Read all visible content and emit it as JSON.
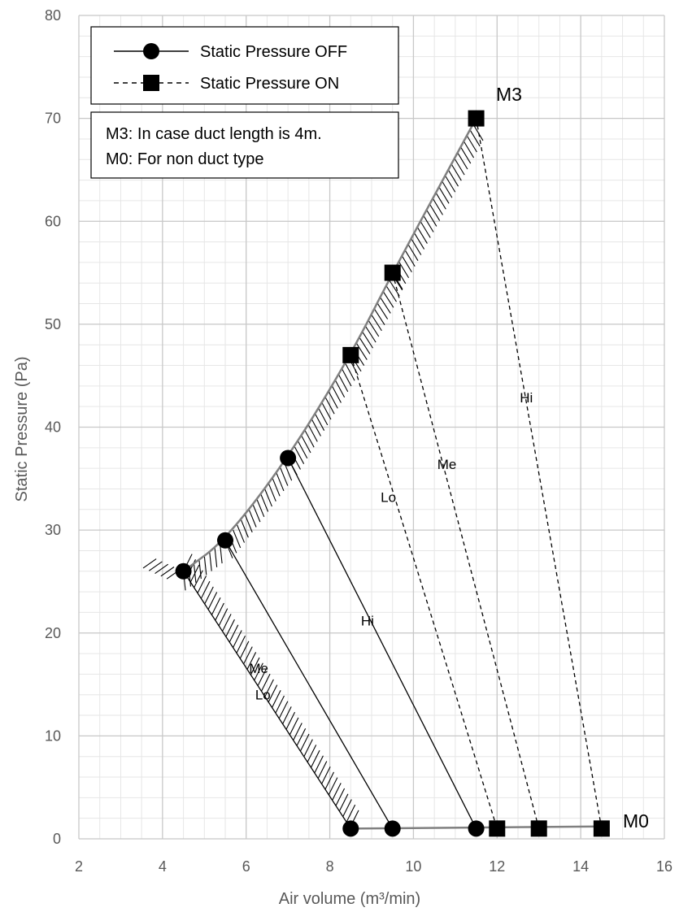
{
  "chart_data": {
    "type": "line",
    "xlabel": "Air volume (m³/min)",
    "ylabel": "Static Pressure (Pa)",
    "xlim": [
      2,
      16
    ],
    "ylim": [
      0,
      80
    ],
    "xticks": [
      "2",
      "4",
      "6",
      "8",
      "10",
      "12",
      "14",
      "16"
    ],
    "yticks": [
      "0",
      "10",
      "20",
      "30",
      "40",
      "50",
      "60",
      "70",
      "80"
    ],
    "grid": true,
    "legend": {
      "placement": "top-left",
      "entries": [
        {
          "label": "Static Pressure OFF",
          "style": "solid",
          "marker": "circle"
        },
        {
          "label": "Static Pressure ON",
          "style": "dashed",
          "marker": "square"
        }
      ]
    },
    "note": [
      "M3: In case duct length is 4m.",
      "M0: For non duct type"
    ],
    "end_labels": {
      "top": "M3",
      "bottom": "M0"
    },
    "series": [
      {
        "label": "Lo",
        "style": "solid",
        "marker": "circle",
        "points": [
          [
            4.5,
            26
          ],
          [
            8.5,
            1
          ]
        ]
      },
      {
        "label": "Me",
        "style": "solid",
        "marker": "circle",
        "points": [
          [
            5.5,
            29
          ],
          [
            9.5,
            1
          ]
        ]
      },
      {
        "label": "Hi",
        "style": "solid",
        "marker": "circle",
        "points": [
          [
            7,
            37
          ],
          [
            11.5,
            1
          ]
        ]
      },
      {
        "label": "Lo",
        "style": "dashed",
        "marker": "square",
        "points": [
          [
            8.5,
            47
          ],
          [
            12,
            1
          ]
        ]
      },
      {
        "label": "Me",
        "style": "dashed",
        "marker": "square",
        "points": [
          [
            9.5,
            55
          ],
          [
            13,
            1
          ]
        ]
      },
      {
        "label": "Hi",
        "style": "dashed",
        "marker": "square",
        "points": [
          [
            11.5,
            70
          ],
          [
            14.5,
            1
          ]
        ]
      }
    ],
    "boundary_top": [
      [
        4.5,
        26
      ],
      [
        5.5,
        29
      ],
      [
        7,
        37
      ],
      [
        8.5,
        47
      ],
      [
        9.5,
        55
      ],
      [
        11.5,
        70
      ]
    ],
    "boundary_bottom": [
      [
        8.5,
        1
      ],
      [
        14.5,
        1.2
      ]
    ],
    "curve_labels": [
      {
        "text": "Lo",
        "x": 6.4,
        "y": 14
      },
      {
        "text": "Me",
        "x": 6.3,
        "y": 16.6
      },
      {
        "text": "Hi",
        "x": 8.9,
        "y": 21.2
      },
      {
        "text": "Lo",
        "x": 9.4,
        "y": 33.2
      },
      {
        "text": "Me",
        "x": 10.8,
        "y": 36.4
      },
      {
        "text": "Hi",
        "x": 12.7,
        "y": 42.9
      }
    ]
  }
}
